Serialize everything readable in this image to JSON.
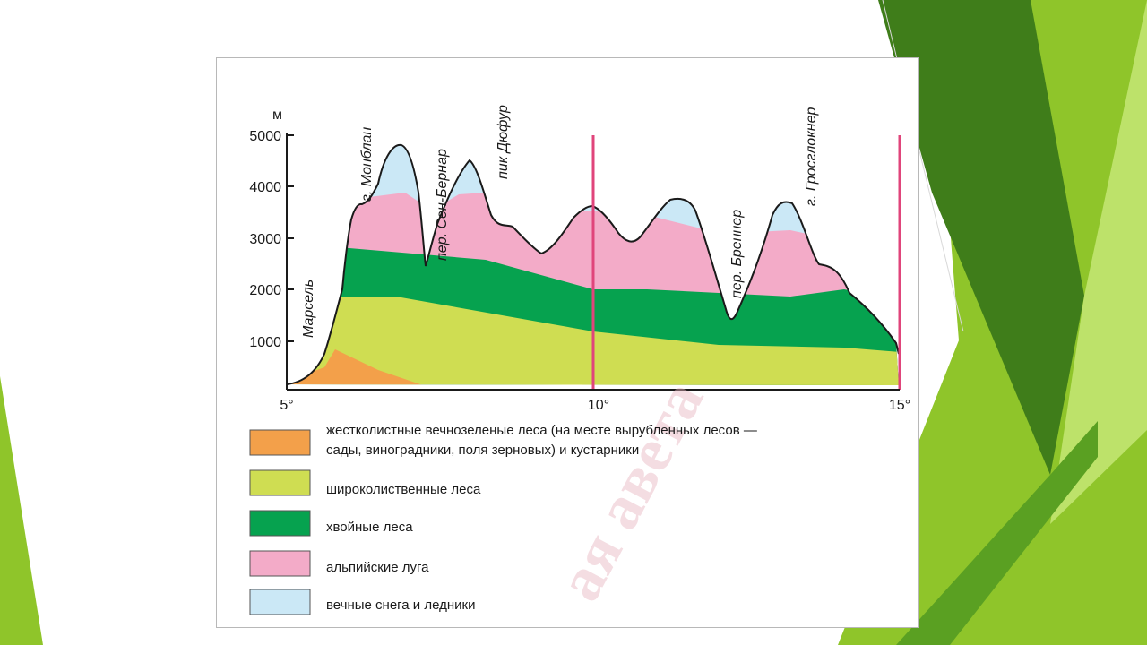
{
  "y_axis": {
    "unit": "м",
    "ticks": [
      "5000",
      "4000",
      "3000",
      "2000",
      "1000"
    ]
  },
  "x_axis": {
    "ticks": [
      "5°",
      "10°",
      "15°"
    ]
  },
  "places": [
    "Марсель",
    "г. Монблан",
    "пер. Сен-Бернар",
    "пик Дюфур",
    "пер. Бреннер",
    "г. Гросглокнер"
  ],
  "legend": [
    {
      "lines": [
        "жестколистные вечнозеленые леса (на месте вырубленных лесов —",
        "сады, виноградники, поля зерновых) и кустарники"
      ],
      "color": "#f3a04a"
    },
    {
      "lines": [
        "широколиственные леса"
      ],
      "color": "#cfdd52"
    },
    {
      "lines": [
        "хвойные леса"
      ],
      "color": "#06a24f"
    },
    {
      "lines": [
        "альпийские луга"
      ],
      "color": "#f3abc8"
    },
    {
      "lines": [
        "вечные снега и ледники"
      ],
      "color": "#cbe8f6"
    }
  ],
  "watermark": "ая авета",
  "colors": {
    "meridian_lines": "#e0457b",
    "slide_green_dark": "#3f7d1a",
    "slide_green_light": "#8fc52a",
    "slide_green_pale": "#bde26a"
  }
}
